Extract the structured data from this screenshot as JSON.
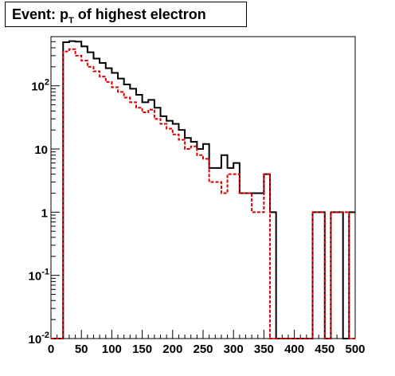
{
  "title": {
    "main": "Event: p",
    "sub": "T",
    "rest": " of highest electron"
  },
  "chart_data": {
    "type": "histogram",
    "title": "Event: pT of highest electron",
    "xlim": [
      0,
      500
    ],
    "ylim": [
      0.01,
      600
    ],
    "yscale": "log",
    "grid": false,
    "bin_width": 10,
    "x_ticks": [
      "0",
      "50",
      "100",
      "150",
      "200",
      "250",
      "300",
      "350",
      "400",
      "450",
      "500"
    ],
    "y_ticks": [
      {
        "value": 0.01,
        "base": "10",
        "exp": "-2"
      },
      {
        "value": 0.1,
        "base": "10",
        "exp": "-1"
      },
      {
        "value": 1,
        "base": "1",
        "exp": ""
      },
      {
        "value": 10,
        "base": "10",
        "exp": ""
      },
      {
        "value": 100,
        "base": "10",
        "exp": "2"
      }
    ],
    "series": [
      {
        "color": "#000000",
        "style": "solid",
        "bin_edges": [
          0,
          10,
          20,
          30,
          40,
          50,
          60,
          70,
          80,
          90,
          100,
          110,
          120,
          130,
          140,
          150,
          160,
          170,
          180,
          190,
          200,
          210,
          220,
          230,
          240,
          250,
          260,
          270,
          280,
          290,
          300,
          310,
          320,
          330,
          340,
          350,
          360,
          370,
          380,
          390,
          400,
          410,
          420,
          430,
          440,
          450,
          460,
          470,
          480,
          490,
          500
        ],
        "values": [
          0.01,
          0.01,
          490,
          510,
          500,
          420,
          340,
          270,
          230,
          190,
          160,
          130,
          105,
          90,
          72,
          55,
          60,
          45,
          33,
          28,
          25,
          20,
          15,
          13,
          10,
          12,
          5,
          5,
          8,
          5,
          6,
          2,
          2,
          2,
          2,
          4,
          1,
          0.01,
          0.01,
          0.01,
          0.01,
          0.01,
          0.01,
          1,
          1,
          0.01,
          1,
          1,
          0.01,
          1
        ]
      },
      {
        "color": "#dd0000",
        "style": "dashed",
        "bin_edges": [
          0,
          10,
          20,
          30,
          40,
          50,
          60,
          70,
          80,
          90,
          100,
          110,
          120,
          130,
          140,
          150,
          160,
          170,
          180,
          190,
          200,
          210,
          220,
          230,
          240,
          250,
          260,
          270,
          280,
          290,
          300,
          310,
          320,
          330,
          340,
          350,
          360,
          370,
          380,
          390,
          400,
          410,
          420,
          430,
          440,
          450,
          460,
          470,
          480,
          490,
          500
        ],
        "values": [
          0.01,
          0.01,
          350,
          380,
          300,
          250,
          200,
          170,
          140,
          115,
          95,
          80,
          65,
          55,
          45,
          38,
          42,
          30,
          25,
          21,
          17,
          14,
          10,
          11,
          8,
          7,
          3,
          3,
          2,
          4,
          4,
          2,
          2,
          1,
          1,
          4,
          0.01,
          0.01,
          0.01,
          0.01,
          0.01,
          0.01,
          0.01,
          1,
          1,
          0.01,
          1,
          1,
          1,
          0.01
        ]
      }
    ]
  }
}
